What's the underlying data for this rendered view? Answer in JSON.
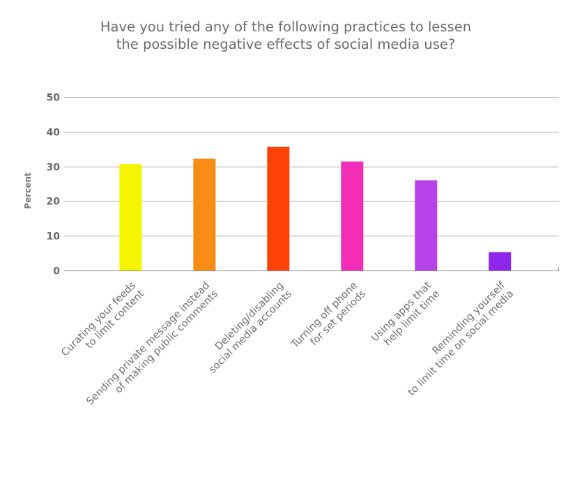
{
  "chart_data": {
    "type": "bar",
    "title": [
      "Have you tried any of the following practices to lessen",
      "the possible negative effects of social media use?"
    ],
    "ylabel": "Percent",
    "xlabel": "",
    "ylim": [
      0,
      50
    ],
    "yticks": [
      0,
      10,
      20,
      30,
      40,
      50
    ],
    "grid": true,
    "categories": [
      [
        "Curating your feeds",
        "to limit content"
      ],
      [
        "Sending private message instead",
        "of making public comments"
      ],
      [
        "Deleting/disabling",
        "social media accounts"
      ],
      [
        "Turning off phone",
        "for set periods"
      ],
      [
        "Using apps that",
        "help limit time"
      ],
      [
        "Reminding yourself",
        "to limit time on social media"
      ]
    ],
    "values": [
      30.7,
      32.2,
      35.6,
      31.4,
      26.0,
      5.3
    ],
    "colors": [
      "#f5f500",
      "#f78b14",
      "#ff4206",
      "#f22eb6",
      "#b843ea",
      "#8e27ea"
    ]
  }
}
